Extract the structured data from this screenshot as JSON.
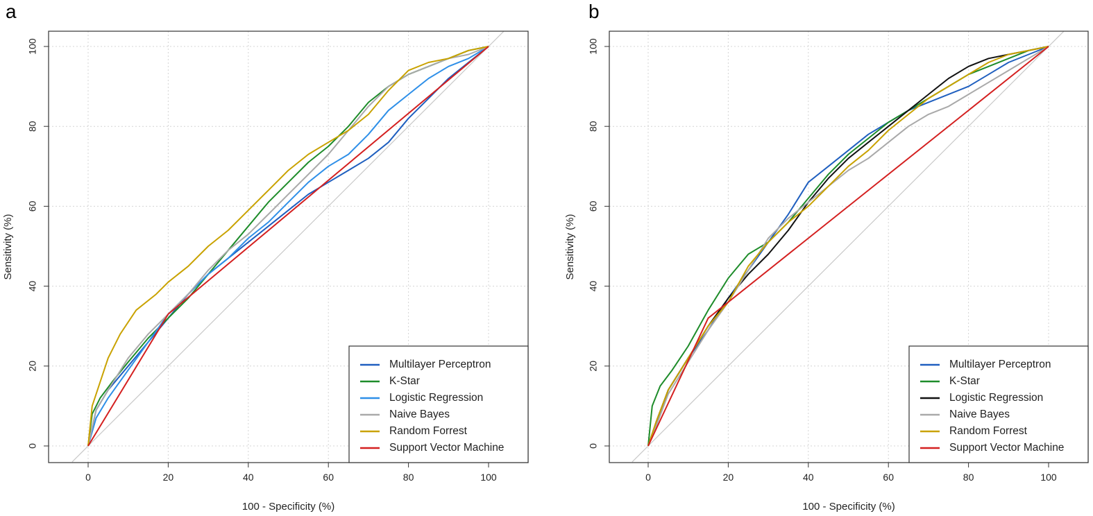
{
  "chart_data": [
    {
      "panel": "a",
      "type": "line",
      "title": "",
      "xlabel": "100 - Specificity (%)",
      "ylabel": "Sensitivity (%)",
      "xlim": [
        -10,
        110
      ],
      "ylim": [
        -4,
        104
      ],
      "xticks": [
        0,
        20,
        40,
        60,
        80,
        100
      ],
      "yticks": [
        0,
        20,
        40,
        60,
        80,
        100
      ],
      "grid": true,
      "legend_position": "bottom-right",
      "reference_line": {
        "from": [
          -4,
          -4
        ],
        "to": [
          104,
          104
        ],
        "color": "#c8c8c8"
      },
      "series": [
        {
          "name": "Multilayer Perceptron",
          "color": "#1f5fbf",
          "x": [
            0,
            2,
            5,
            10,
            15,
            20,
            25,
            30,
            35,
            40,
            45,
            50,
            55,
            60,
            65,
            70,
            75,
            80,
            85,
            90,
            95,
            100
          ],
          "y": [
            0,
            9,
            14,
            20,
            26,
            32,
            38,
            43,
            47,
            51,
            55,
            59,
            63,
            66,
            69,
            72,
            76,
            82,
            87,
            92,
            96,
            100
          ]
        },
        {
          "name": "K-Star",
          "color": "#1e8c2a",
          "x": [
            0,
            1,
            3,
            6,
            10,
            15,
            20,
            25,
            30,
            35,
            40,
            45,
            50,
            55,
            60,
            65,
            70,
            75,
            80,
            85,
            90,
            95,
            100
          ],
          "y": [
            0,
            8,
            12,
            16,
            21,
            27,
            32,
            37,
            43,
            49,
            55,
            61,
            66,
            71,
            75,
            80,
            86,
            90,
            93,
            95,
            97,
            99,
            100
          ]
        },
        {
          "name": "Logistic Regression",
          "color": "#2e8fe8",
          "x": [
            0,
            2,
            5,
            10,
            15,
            20,
            25,
            30,
            35,
            40,
            45,
            50,
            55,
            60,
            65,
            70,
            75,
            80,
            85,
            90,
            95,
            100
          ],
          "y": [
            0,
            7,
            12,
            19,
            26,
            33,
            38,
            43,
            47,
            52,
            56,
            61,
            66,
            70,
            73,
            78,
            84,
            88,
            92,
            95,
            97,
            100
          ]
        },
        {
          "name": "Naive Bayes",
          "color": "#a9a9a9",
          "x": [
            0,
            2,
            5,
            10,
            15,
            20,
            25,
            30,
            35,
            40,
            45,
            50,
            55,
            60,
            65,
            70,
            75,
            80,
            85,
            90,
            95,
            100
          ],
          "y": [
            0,
            9,
            14,
            22,
            28,
            33,
            38,
            44,
            49,
            53,
            58,
            63,
            68,
            73,
            79,
            85,
            90,
            93,
            95,
            97,
            98,
            100
          ]
        },
        {
          "name": "Random Forrest",
          "color": "#c9a200",
          "x": [
            0,
            1,
            3,
            5,
            8,
            12,
            17,
            20,
            25,
            30,
            35,
            40,
            45,
            50,
            55,
            60,
            65,
            70,
            75,
            80,
            85,
            90,
            95,
            100
          ],
          "y": [
            0,
            10,
            16,
            22,
            28,
            34,
            38,
            41,
            45,
            50,
            54,
            59,
            64,
            69,
            73,
            76,
            79,
            83,
            89,
            94,
            96,
            97,
            99,
            100
          ]
        },
        {
          "name": "Support Vector Machine",
          "color": "#d42020",
          "x": [
            0,
            20,
            100
          ],
          "y": [
            0,
            33,
            100
          ]
        }
      ]
    },
    {
      "panel": "b",
      "type": "line",
      "title": "",
      "xlabel": "100 - Specificity (%)",
      "ylabel": "Sensitivity (%)",
      "xlim": [
        -10,
        110
      ],
      "ylim": [
        -4,
        104
      ],
      "xticks": [
        0,
        20,
        40,
        60,
        80,
        100
      ],
      "yticks": [
        0,
        20,
        40,
        60,
        80,
        100
      ],
      "grid": true,
      "legend_position": "bottom-right",
      "reference_line": {
        "from": [
          -4,
          -4
        ],
        "to": [
          104,
          104
        ],
        "color": "#c8c8c8"
      },
      "series": [
        {
          "name": "Multilayer Perceptron",
          "color": "#1f5fbf",
          "x": [
            0,
            2,
            5,
            10,
            15,
            20,
            25,
            30,
            35,
            40,
            45,
            50,
            55,
            60,
            65,
            70,
            75,
            80,
            85,
            90,
            95,
            100
          ],
          "y": [
            0,
            5,
            14,
            22,
            29,
            37,
            44,
            51,
            58,
            66,
            70,
            74,
            78,
            81,
            84,
            86,
            88,
            90,
            93,
            96,
            98,
            100
          ]
        },
        {
          "name": "K-Star",
          "color": "#1e8c2a",
          "x": [
            0,
            1,
            3,
            6,
            10,
            15,
            20,
            25,
            30,
            35,
            40,
            45,
            50,
            55,
            60,
            65,
            70,
            75,
            80,
            85,
            90,
            95,
            100
          ],
          "y": [
            0,
            10,
            15,
            19,
            25,
            34,
            42,
            48,
            51,
            56,
            62,
            68,
            73,
            77,
            81,
            84,
            87,
            90,
            93,
            95,
            97,
            99,
            100
          ]
        },
        {
          "name": "Logistic Regression",
          "color": "#111111",
          "x": [
            0,
            2,
            5,
            10,
            15,
            20,
            25,
            30,
            35,
            40,
            45,
            50,
            55,
            60,
            65,
            70,
            75,
            80,
            85,
            90,
            95,
            100
          ],
          "y": [
            0,
            6,
            14,
            22,
            30,
            37,
            43,
            48,
            54,
            61,
            67,
            72,
            76,
            80,
            84,
            88,
            92,
            95,
            97,
            98,
            99,
            100
          ]
        },
        {
          "name": "Naive Bayes",
          "color": "#a9a9a9",
          "x": [
            0,
            2,
            5,
            10,
            15,
            20,
            25,
            30,
            35,
            40,
            45,
            50,
            55,
            60,
            65,
            70,
            75,
            80,
            85,
            90,
            95,
            100
          ],
          "y": [
            0,
            5,
            13,
            21,
            29,
            36,
            44,
            52,
            57,
            61,
            65,
            69,
            72,
            76,
            80,
            83,
            85,
            88,
            91,
            94,
            97,
            100
          ]
        },
        {
          "name": "Random Forrest",
          "color": "#c9a200",
          "x": [
            0,
            2,
            5,
            10,
            15,
            20,
            25,
            30,
            35,
            40,
            45,
            50,
            55,
            60,
            65,
            70,
            75,
            80,
            85,
            90,
            95,
            100
          ],
          "y": [
            0,
            6,
            14,
            22,
            30,
            36,
            45,
            51,
            56,
            60,
            65,
            70,
            74,
            79,
            83,
            87,
            90,
            93,
            96,
            98,
            99,
            100
          ]
        },
        {
          "name": "Support Vector Machine",
          "color": "#d42020",
          "x": [
            0,
            15,
            100
          ],
          "y": [
            0,
            32,
            100
          ]
        }
      ]
    }
  ]
}
